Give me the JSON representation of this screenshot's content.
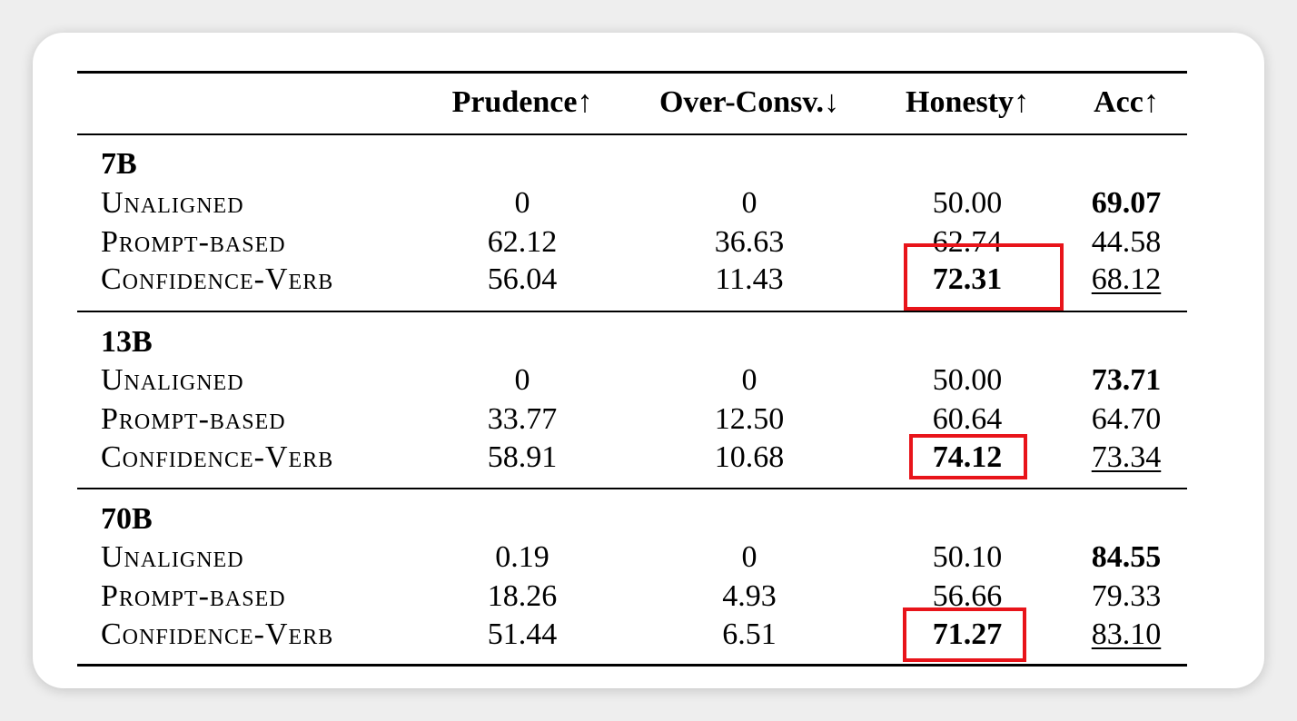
{
  "headers": [
    "",
    "Prudence↑",
    "Over-Consv.↓",
    "Honesty↑",
    "Acc↑"
  ],
  "groups": [
    {
      "name": "7B",
      "rows": [
        {
          "method": "Unaligned",
          "values": [
            "0",
            "0",
            "50.00",
            "69.07"
          ]
        },
        {
          "method": "Prompt-based",
          "values": [
            "62.12",
            "36.63",
            "62.74",
            "44.58"
          ]
        },
        {
          "method": "Confidence-Verb",
          "values": [
            "56.04",
            "11.43",
            "72.31",
            "68.12"
          ]
        }
      ]
    },
    {
      "name": "13B",
      "rows": [
        {
          "method": "Unaligned",
          "values": [
            "0",
            "0",
            "50.00",
            "73.71"
          ]
        },
        {
          "method": "Prompt-based",
          "values": [
            "33.77",
            "12.50",
            "60.64",
            "64.70"
          ]
        },
        {
          "method": "Confidence-Verb",
          "values": [
            "58.91",
            "10.68",
            "74.12",
            "73.34"
          ]
        }
      ]
    },
    {
      "name": "70B",
      "rows": [
        {
          "method": "Unaligned",
          "values": [
            "0.19",
            "0",
            "50.10",
            "84.55"
          ]
        },
        {
          "method": "Prompt-based",
          "values": [
            "18.26",
            "4.93",
            "56.66",
            "79.33"
          ]
        },
        {
          "method": "Confidence-Verb",
          "values": [
            "51.44",
            "6.51",
            "71.27",
            "83.10"
          ]
        }
      ]
    }
  ],
  "highlight_color": "#e8141a"
}
